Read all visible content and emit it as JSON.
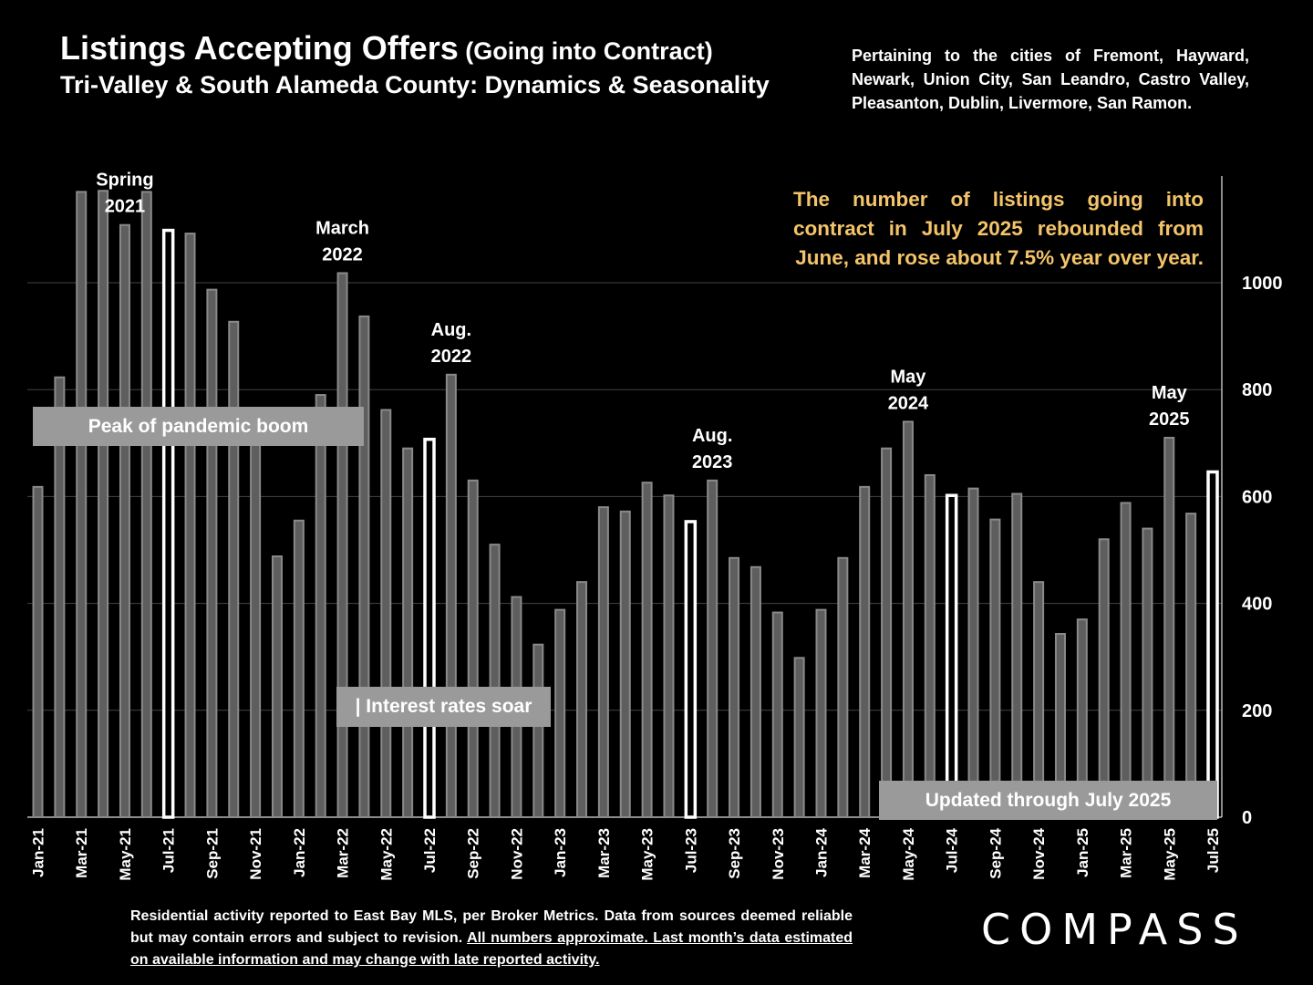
{
  "header": {
    "title_main": "Listings Accepting Offers",
    "title_paren": " (Going into Contract)",
    "subtitle": "Tri-Valley & South Alameda County: Dynamics & Seasonality",
    "scope": "Pertaining to the cities of Fremont, Hayward, Newark, Union City, San Leandro, Castro Valley, Pleasanton, Dublin, Livermore, San Ramon."
  },
  "note": "The number of listings going into contract in July 2025 rebounded from June, and rose about 7.5% year over year.",
  "label_boxes": {
    "pandemic": "Peak of pandemic boom",
    "rates": "| Interest rates soar",
    "updated": "Updated through July 2025"
  },
  "footer": {
    "line1": "Residential activity reported to East Bay MLS, per Broker Metrics. Data from sources deemed reliable but may contain errors and subject to revision. ",
    "underlined": "All numbers approximate. Last month’s data estimated on available information and may change with late reported activity."
  },
  "logo": "COMPASS",
  "colors": {
    "bar": "#5e5e5e",
    "bar_edge": "#8a8a8a",
    "highlight_edge": "#ffffff",
    "note": "#f4c46a",
    "label_box": "#9a9a9a"
  },
  "chart_data": {
    "type": "bar",
    "categories": [
      "Jan-21",
      "Feb-21",
      "Mar-21",
      "Apr-21",
      "May-21",
      "Jun-21",
      "Jul-21",
      "Aug-21",
      "Sep-21",
      "Oct-21",
      "Nov-21",
      "Dec-21",
      "Jan-22",
      "Feb-22",
      "Mar-22",
      "Apr-22",
      "May-22",
      "Jun-22",
      "Jul-22",
      "Aug-22",
      "Sep-22",
      "Oct-22",
      "Nov-22",
      "Dec-22",
      "Jan-23",
      "Feb-23",
      "Mar-23",
      "Apr-23",
      "May-23",
      "Jun-23",
      "Jul-23",
      "Aug-23",
      "Sep-23",
      "Oct-23",
      "Nov-23",
      "Dec-23",
      "Jan-24",
      "Feb-24",
      "Mar-24",
      "Apr-24",
      "May-24",
      "Jun-24",
      "Jul-24",
      "Aug-24",
      "Sep-24",
      "Oct-24",
      "Nov-24",
      "Dec-24",
      "Jan-25",
      "Feb-25",
      "Mar-25",
      "Apr-25",
      "May-25",
      "Jun-25",
      "Jul-25"
    ],
    "values": [
      618,
      823,
      1170,
      1172,
      1108,
      1170,
      1098,
      1092,
      987,
      927,
      740,
      488,
      555,
      790,
      1018,
      937,
      762,
      690,
      707,
      828,
      630,
      510,
      412,
      323,
      388,
      440,
      580,
      572,
      626,
      602,
      553,
      630,
      485,
      468,
      383,
      298,
      388,
      485,
      618,
      690,
      740,
      640,
      602,
      615,
      557,
      605,
      440,
      343,
      370,
      520,
      588,
      540,
      710,
      568,
      646
    ],
    "highlight": [
      "Jul-21",
      "Jul-22",
      "Jul-23",
      "Jul-24",
      "Jul-25"
    ],
    "tick_labels_shown": [
      "Jan-21",
      "Mar-21",
      "May-21",
      "Jul-21",
      "Sep-21",
      "Nov-21",
      "Jan-22",
      "Mar-22",
      "May-22",
      "Jul-22",
      "Sep-22",
      "Nov-22",
      "Jan-23",
      "Mar-23",
      "May-23",
      "Jul-23",
      "Sep-23",
      "Nov-23",
      "Jan-24",
      "Mar-24",
      "May-24",
      "Jul-24",
      "Sep-24",
      "Nov-24",
      "Jan-25",
      "Mar-25",
      "May-25",
      "Jul-25"
    ],
    "y_ticks": [
      0,
      200,
      400,
      600,
      800,
      1000
    ],
    "ylim": [
      0,
      1200
    ],
    "y_axis_side": "right",
    "grid": true,
    "annotations": [
      {
        "category": "May-21",
        "lines": [
          "Spring",
          "2021"
        ]
      },
      {
        "category": "Mar-22",
        "lines": [
          "March",
          "2022"
        ]
      },
      {
        "category": "Aug-22",
        "lines": [
          "Aug.",
          "2022"
        ]
      },
      {
        "category": "Aug-23",
        "lines": [
          "Aug.",
          "2023"
        ]
      },
      {
        "category": "May-24",
        "lines": [
          "May",
          "2024"
        ]
      },
      {
        "category": "May-25",
        "lines": [
          "May",
          "2025"
        ]
      }
    ]
  }
}
